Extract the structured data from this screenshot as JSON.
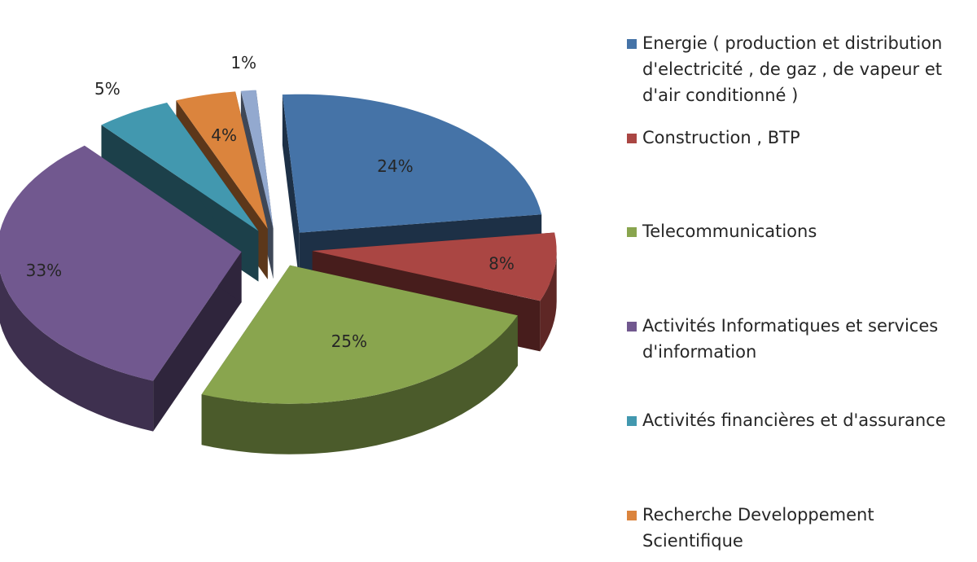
{
  "chart_data": {
    "type": "pie",
    "style": "exploded 3D pie",
    "legend_position": "right",
    "slices": [
      {
        "label": "Energie ( production et distribution\nd'electricité , de gaz , de vapeur et\nd'air conditionné )",
        "value": 24,
        "display": "24%",
        "color": "#4573A7"
      },
      {
        "label": "Construction , BTP",
        "value": 8,
        "display": "8%",
        "color": "#AA4643"
      },
      {
        "label": "Telecommunications",
        "value": 25,
        "display": "25%",
        "color": "#89A54E"
      },
      {
        "label": "Activités Informatiques et services\nd'information",
        "value": 33,
        "display": "33%",
        "color": "#71588F"
      },
      {
        "label": "Activités financières et d'assurance",
        "value": 5,
        "display": "5%",
        "color": "#4298AF"
      },
      {
        "label": "Recherche Developpement\nScientifique",
        "value": 4,
        "display": "4%",
        "color": "#DB843D"
      },
      {
        "label": "",
        "value": 1,
        "display": "1%",
        "color": "#93A9CF"
      }
    ]
  }
}
